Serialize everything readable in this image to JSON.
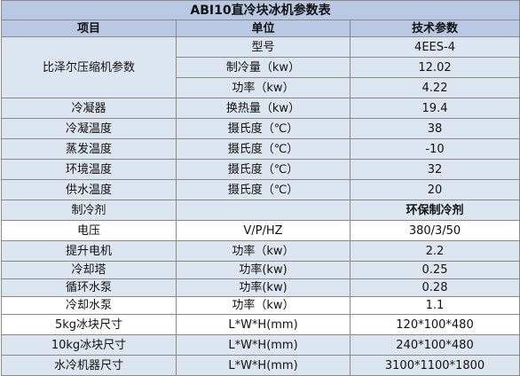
{
  "table": {
    "title": "ABI10直冷块冰机参数表",
    "headers": {
      "item": "项目",
      "unit": "单位",
      "param": "技术参数"
    },
    "compressor": {
      "label": "比泽尔压缩机参数",
      "rows": [
        {
          "unit": "型号",
          "value": "4EES-4"
        },
        {
          "unit": "制冷量（kw）",
          "value": "12.02"
        },
        {
          "unit": "功率（kw）",
          "value": "4.22"
        }
      ]
    },
    "rows": [
      {
        "item": "冷凝器",
        "unit": "换热量（kw）",
        "value": "19.4"
      },
      {
        "item": "冷凝温度",
        "unit": "摄氏度（℃）",
        "value": "38"
      },
      {
        "item": "蒸发温度",
        "unit": "摄氏度（℃）",
        "value": "-10"
      },
      {
        "item": "环境温度",
        "unit": "摄氏度（℃）",
        "value": "32"
      },
      {
        "item": "供水温度",
        "unit": "摄氏度（℃）",
        "value": "20"
      },
      {
        "item": "制冷剂",
        "unit": "",
        "value": "环保制冷剂"
      },
      {
        "item": "电压",
        "unit": "V/P/HZ",
        "value": "380/3/50"
      },
      {
        "item": "提升电机",
        "unit": "功率（kw）",
        "value": "2.2"
      },
      {
        "item": "冷却塔",
        "unit": "功率(kw)",
        "value": "0.25"
      },
      {
        "item": "循环水泵",
        "unit": "功率(kw)",
        "value": "0.28"
      },
      {
        "item": "冷却水泵",
        "unit": "功率（kw）",
        "value": "1.1"
      },
      {
        "item": "5kg冰块尺寸",
        "unit": "L*W*H(mm)",
        "value": "120*100*480"
      },
      {
        "item": "10kg冰块尺寸",
        "unit": "L*W*H(mm)",
        "value": "240*100*480"
      },
      {
        "item": "水冷机器尺寸",
        "unit": "L*W*H(mm)",
        "value": "3100*1100*1800"
      }
    ]
  }
}
